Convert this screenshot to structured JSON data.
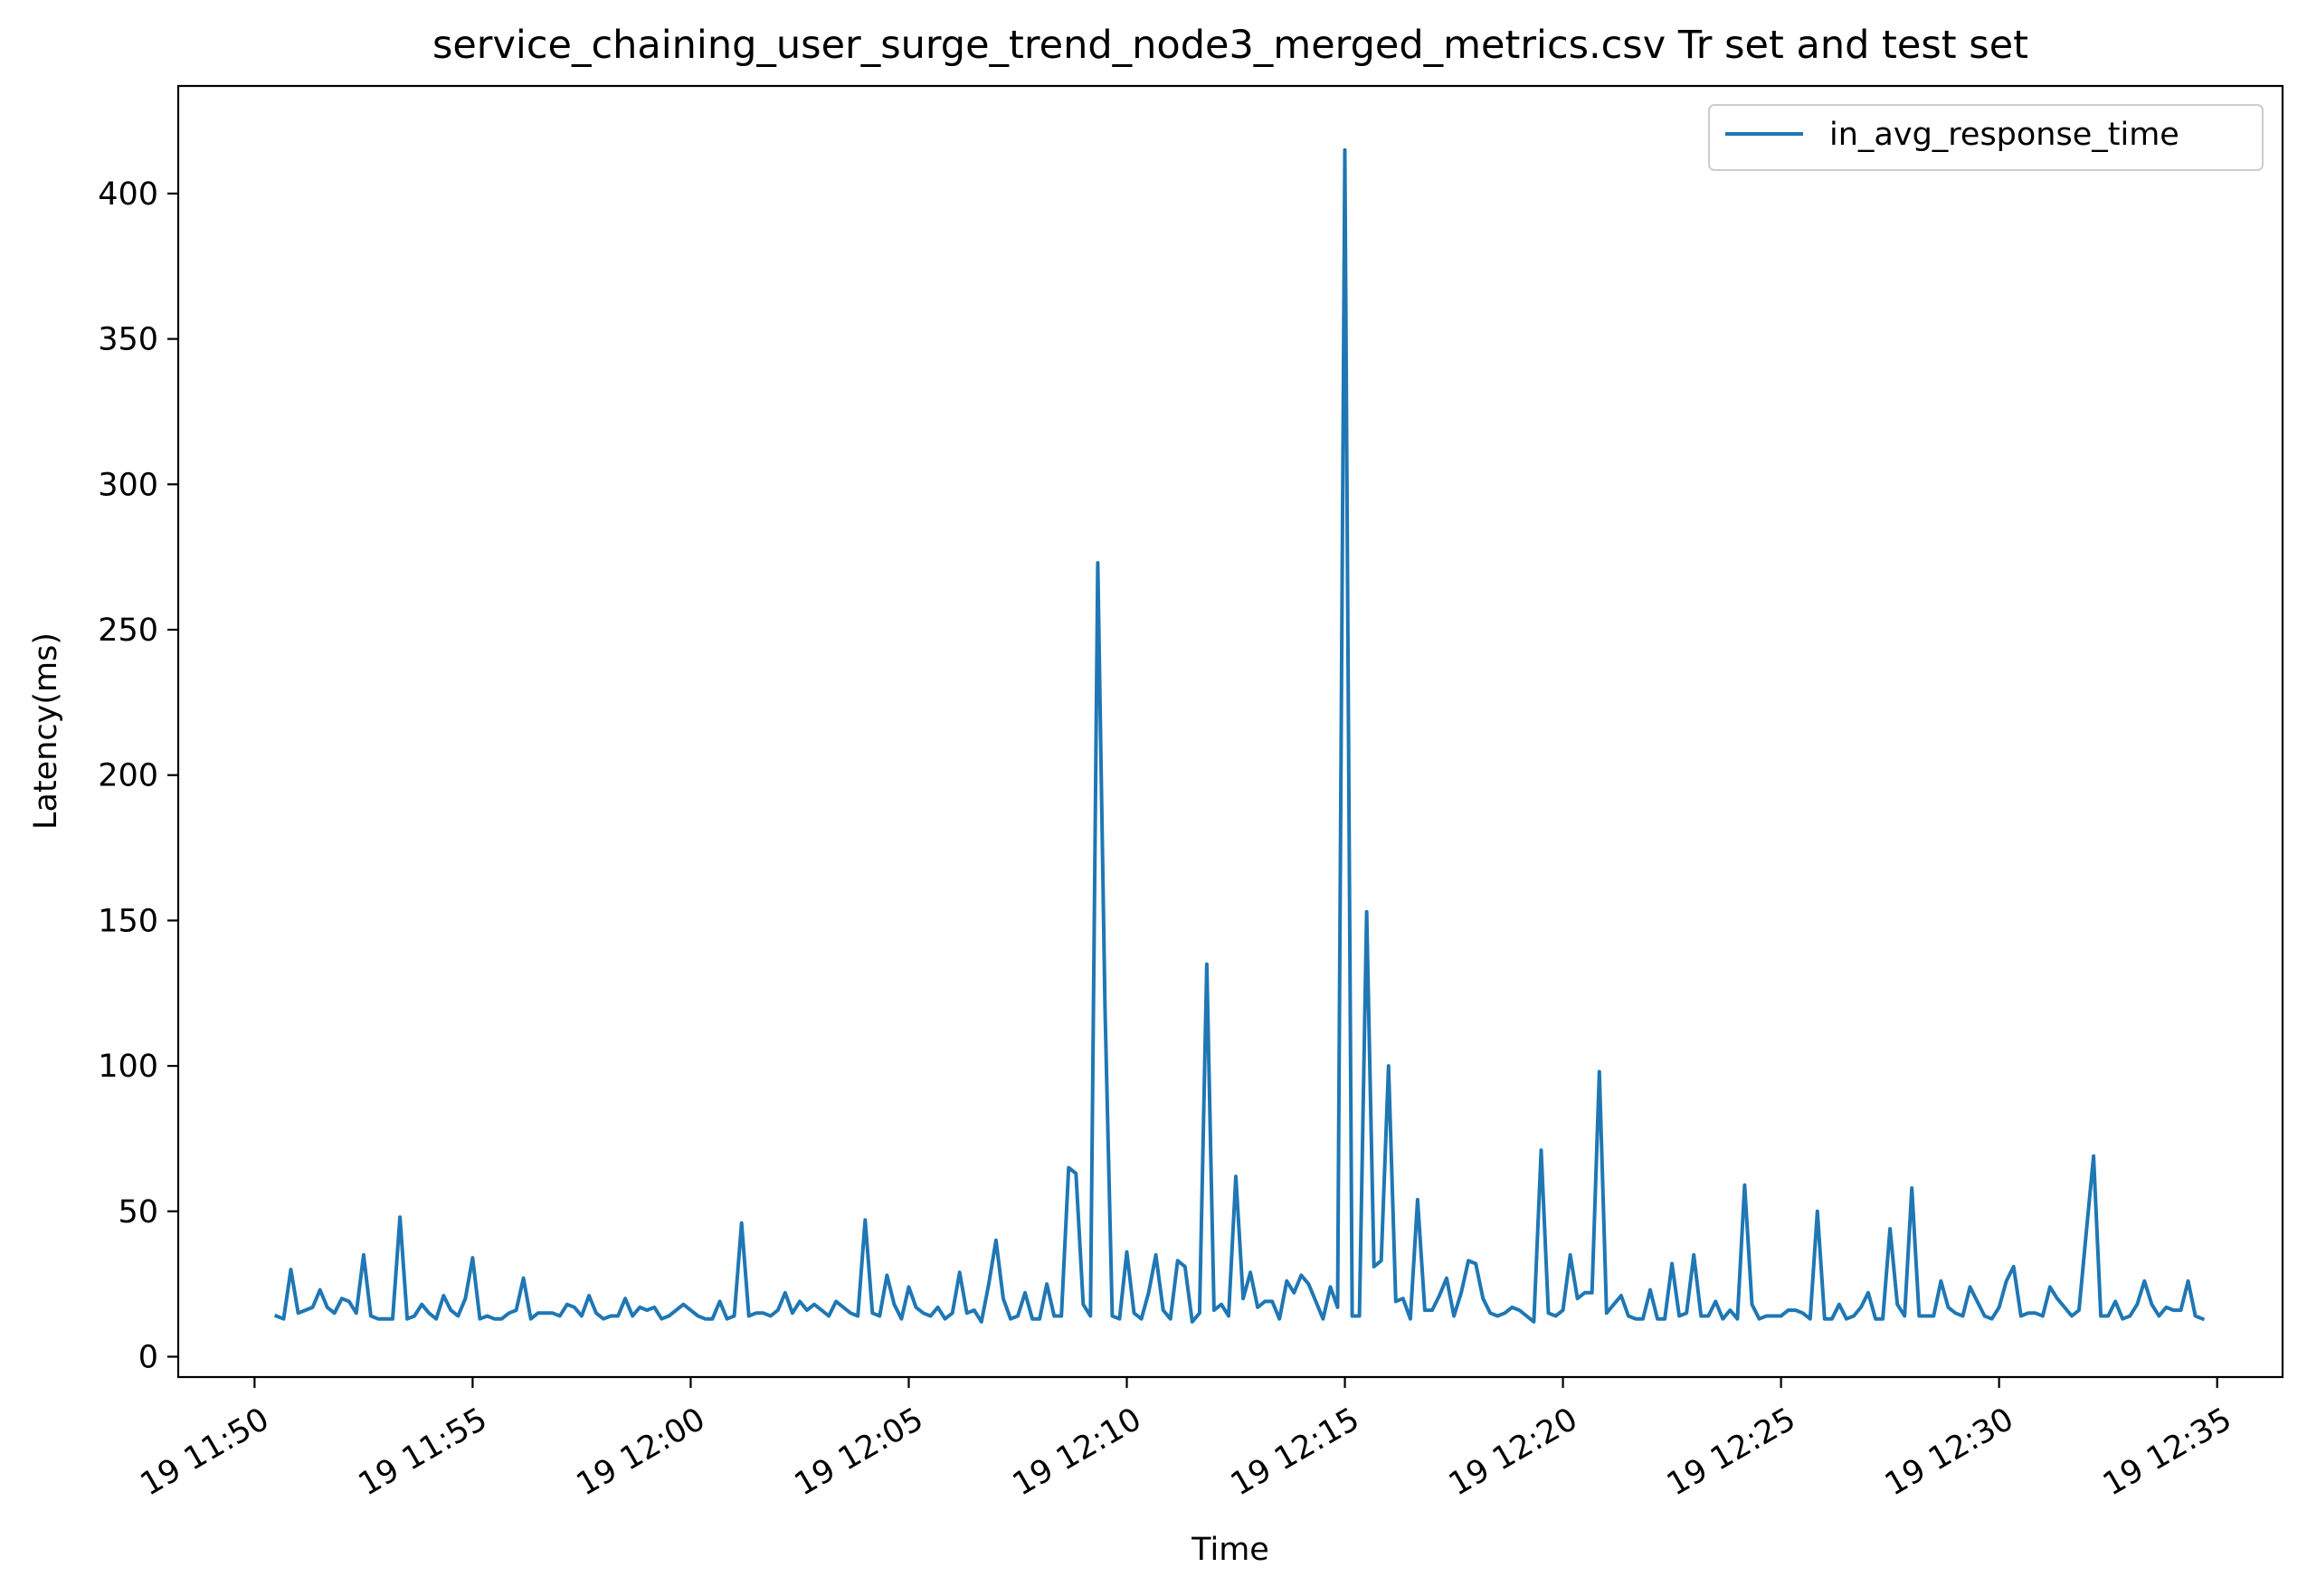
{
  "chart_data": {
    "type": "line",
    "title": "service_chaining_user_surge_trend_node3_merged_metrics.csv Tr set and test set",
    "xlabel": "Time",
    "ylabel": "Latency(ms)",
    "xlim": [
      "11:48:15",
      "12:36:30"
    ],
    "ylim": [
      -7,
      437
    ],
    "x_ticks": [
      {
        "t": "11:50",
        "label": "19 11:50"
      },
      {
        "t": "11:55",
        "label": "19 11:55"
      },
      {
        "t": "12:00",
        "label": "19 12:00"
      },
      {
        "t": "12:05",
        "label": "19 12:05"
      },
      {
        "t": "12:10",
        "label": "19 12:10"
      },
      {
        "t": "12:15",
        "label": "19 12:15"
      },
      {
        "t": "12:20",
        "label": "19 12:20"
      },
      {
        "t": "12:25",
        "label": "19 12:25"
      },
      {
        "t": "12:30",
        "label": "19 12:30"
      },
      {
        "t": "12:35",
        "label": "19 12:35"
      }
    ],
    "y_ticks": [
      0,
      50,
      100,
      150,
      200,
      250,
      300,
      350,
      400
    ],
    "grid": false,
    "legend_position": "upper right",
    "series": [
      {
        "name": "in_avg_response_time",
        "color": "#1f77b4",
        "x": [
          "11:50:30",
          "11:50:40",
          "11:50:50",
          "11:51:00",
          "11:51:10",
          "11:51:20",
          "11:51:30",
          "11:51:40",
          "11:51:50",
          "11:52:00",
          "11:52:10",
          "11:52:20",
          "11:52:30",
          "11:52:40",
          "11:52:50",
          "11:53:00",
          "11:53:10",
          "11:53:20",
          "11:53:30",
          "11:53:40",
          "11:53:50",
          "11:54:00",
          "11:54:10",
          "11:54:20",
          "11:54:30",
          "11:54:40",
          "11:54:50",
          "11:55:00",
          "11:55:10",
          "11:55:20",
          "11:55:30",
          "11:55:40",
          "11:55:50",
          "11:56:00",
          "11:56:10",
          "11:56:20",
          "11:56:30",
          "11:56:40",
          "11:56:50",
          "11:57:00",
          "11:57:10",
          "11:57:20",
          "11:57:30",
          "11:57:40",
          "11:57:50",
          "11:58:00",
          "11:58:10",
          "11:58:20",
          "11:58:30",
          "11:58:40",
          "11:58:50",
          "11:59:00",
          "11:59:10",
          "11:59:20",
          "11:59:30",
          "11:59:40",
          "11:59:50",
          "12:00:00",
          "12:00:10",
          "12:00:20",
          "12:00:30",
          "12:00:40",
          "12:00:50",
          "12:01:00",
          "12:01:10",
          "12:01:20",
          "12:01:30",
          "12:01:40",
          "12:01:50",
          "12:02:00",
          "12:02:10",
          "12:02:20",
          "12:02:30",
          "12:02:40",
          "12:02:50",
          "12:03:00",
          "12:03:10",
          "12:03:20",
          "12:03:30",
          "12:03:40",
          "12:03:50",
          "12:04:00",
          "12:04:10",
          "12:04:20",
          "12:04:30",
          "12:04:40",
          "12:04:50",
          "12:05:00",
          "12:05:10",
          "12:05:20",
          "12:05:30",
          "12:05:40",
          "12:05:50",
          "12:06:00",
          "12:06:10",
          "12:06:20",
          "12:06:30",
          "12:06:40",
          "12:06:50",
          "12:07:00",
          "12:07:10",
          "12:07:20",
          "12:07:30",
          "12:07:40",
          "12:07:50",
          "12:08:00",
          "12:08:10",
          "12:08:20",
          "12:08:30",
          "12:08:40",
          "12:08:50",
          "12:09:00",
          "12:09:10",
          "12:09:20",
          "12:09:30",
          "12:09:40",
          "12:09:50",
          "12:10:00",
          "12:10:10",
          "12:10:20",
          "12:10:30",
          "12:10:40",
          "12:10:50",
          "12:11:00",
          "12:11:10",
          "12:11:20",
          "12:11:30",
          "12:11:40",
          "12:11:50",
          "12:12:00",
          "12:12:10",
          "12:12:20",
          "12:12:30",
          "12:12:40",
          "12:12:50",
          "12:13:00",
          "12:13:10",
          "12:13:20",
          "12:13:30",
          "12:13:40",
          "12:13:50",
          "12:14:00",
          "12:14:10",
          "12:14:20",
          "12:14:30",
          "12:14:40",
          "12:14:50",
          "12:15:00",
          "12:15:10",
          "12:15:20",
          "12:15:30",
          "12:15:40",
          "12:15:50",
          "12:16:00",
          "12:16:10",
          "12:16:20",
          "12:16:30",
          "12:16:40",
          "12:16:50",
          "12:17:00",
          "12:17:10",
          "12:17:20",
          "12:17:30",
          "12:17:40",
          "12:17:50",
          "12:18:00",
          "12:18:10",
          "12:18:20",
          "12:18:30",
          "12:18:40",
          "12:18:50",
          "12:19:00",
          "12:19:10",
          "12:19:20",
          "12:19:30",
          "12:19:40",
          "12:19:50",
          "12:20:00",
          "12:20:10",
          "12:20:20",
          "12:20:30",
          "12:20:40",
          "12:20:50",
          "12:21:00",
          "12:21:10",
          "12:21:20",
          "12:21:30",
          "12:21:40",
          "12:21:50",
          "12:22:00",
          "12:22:10",
          "12:22:20",
          "12:22:30",
          "12:22:40",
          "12:22:50",
          "12:23:00",
          "12:23:10",
          "12:23:20",
          "12:23:30",
          "12:23:40",
          "12:23:50",
          "12:24:00",
          "12:24:10",
          "12:24:20",
          "12:24:30",
          "12:24:40",
          "12:24:50",
          "12:25:00",
          "12:25:10",
          "12:25:20",
          "12:25:30",
          "12:25:40",
          "12:25:50",
          "12:26:00",
          "12:26:10",
          "12:26:20",
          "12:26:30",
          "12:26:40",
          "12:26:50",
          "12:27:00",
          "12:27:10",
          "12:27:20",
          "12:27:30",
          "12:27:40",
          "12:27:50",
          "12:28:00",
          "12:28:10",
          "12:28:20",
          "12:28:30",
          "12:28:40",
          "12:28:50",
          "12:29:00",
          "12:29:10",
          "12:29:20",
          "12:29:30",
          "12:29:40",
          "12:29:50",
          "12:30:00",
          "12:30:10",
          "12:30:20",
          "12:30:30",
          "12:30:40",
          "12:30:50",
          "12:31:00",
          "12:31:10",
          "12:31:20",
          "12:31:30",
          "12:31:40",
          "12:31:50",
          "12:32:00",
          "12:32:10",
          "12:32:20",
          "12:32:30",
          "12:32:40",
          "12:32:50",
          "12:33:00",
          "12:33:10",
          "12:33:20",
          "12:33:30",
          "12:33:40",
          "12:33:50",
          "12:34:00",
          "12:34:10",
          "12:34:20",
          "12:34:30",
          "12:34:40"
        ],
        "y": [
          14,
          13,
          30,
          15,
          16,
          17,
          23,
          17,
          15,
          20,
          19,
          15,
          35,
          14,
          13,
          13,
          13,
          48,
          13,
          14,
          18,
          15,
          13,
          21,
          16,
          14,
          20,
          34,
          13,
          14,
          13,
          13,
          15,
          16,
          27,
          13,
          15,
          15,
          15,
          14,
          18,
          17,
          14,
          21,
          15,
          13,
          14,
          14,
          20,
          14,
          17,
          16,
          17,
          13,
          14,
          16,
          18,
          16,
          14,
          13,
          13,
          19,
          13,
          14,
          46,
          14,
          15,
          15,
          14,
          16,
          22,
          15,
          19,
          16,
          18,
          16,
          14,
          19,
          17,
          15,
          14,
          47,
          15,
          14,
          28,
          18,
          13,
          24,
          17,
          15,
          14,
          17,
          13,
          15,
          29,
          15,
          16,
          12,
          25,
          40,
          20,
          13,
          14,
          22,
          13,
          13,
          25,
          14,
          14,
          65,
          63,
          18,
          14,
          273,
          120,
          14,
          13,
          36,
          15,
          13,
          22,
          35,
          16,
          13,
          33,
          31,
          12,
          15,
          135,
          16,
          18,
          14,
          62,
          20,
          29,
          17,
          19,
          19,
          13,
          26,
          22,
          28,
          25,
          19,
          13,
          24,
          17,
          415,
          14,
          14,
          153,
          31,
          33,
          100,
          19,
          20,
          13,
          54,
          16,
          16,
          21,
          27,
          14,
          22,
          33,
          32,
          20,
          15,
          14,
          15,
          17,
          16,
          14,
          12,
          71,
          15,
          14,
          16,
          35,
          20,
          22,
          22,
          98,
          15,
          18,
          21,
          14,
          13,
          13,
          23,
          13,
          13,
          32,
          14,
          15,
          35,
          14,
          14,
          19,
          13,
          16,
          13,
          59,
          18,
          13,
          14,
          14,
          14,
          16,
          16,
          15,
          13,
          50,
          13,
          13,
          18,
          13,
          14,
          17,
          22,
          13,
          13,
          44,
          18,
          14,
          58,
          14,
          14,
          14,
          26,
          17,
          15,
          14,
          24,
          19,
          14,
          13,
          17,
          26,
          31,
          14,
          15,
          15,
          14,
          24,
          20,
          17,
          14,
          16,
          43,
          69,
          14,
          14,
          19,
          13,
          14,
          18,
          26,
          18,
          14,
          17,
          16,
          16,
          26,
          14,
          13
        ]
      }
    ]
  }
}
